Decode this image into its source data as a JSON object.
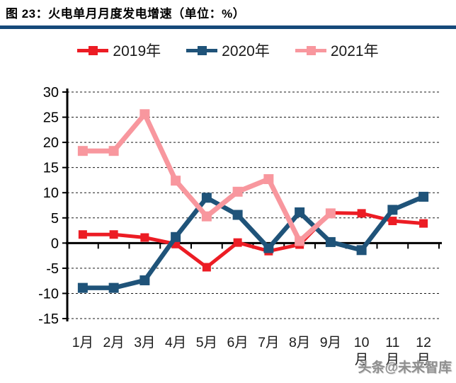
{
  "header": {
    "title": "图 23：火电单月月度发电增速（单位：%）",
    "rule_color": "#15497A"
  },
  "legend": [
    {
      "label": "2019年",
      "color": "#EC1C24"
    },
    {
      "label": "2020年",
      "color": "#1F5379"
    },
    {
      "label": "2021年",
      "color": "#F8979E"
    }
  ],
  "watermark": "头条@未来智库",
  "chart_data": {
    "type": "line",
    "title": "火电单月月度发电增速（单位：%）",
    "categories": [
      "1月",
      "2月",
      "3月",
      "4月",
      "5月",
      "6月",
      "7月",
      "8月",
      "9月",
      "10月",
      "11月",
      "12月"
    ],
    "series": [
      {
        "name": "2019年",
        "color": "#EC1C24",
        "values": [
          1.7,
          1.7,
          1.1,
          -0.2,
          -4.8,
          0.1,
          -1.6,
          -0.3,
          6.0,
          5.9,
          4.4,
          3.9
        ]
      },
      {
        "name": "2020年",
        "color": "#1F5379",
        "values": [
          -8.9,
          -8.9,
          -7.4,
          1.2,
          9.0,
          5.6,
          -1.0,
          6.1,
          0.2,
          -1.4,
          6.6,
          9.2
        ]
      },
      {
        "name": "2021年",
        "color": "#F8979E",
        "values": [
          18.3,
          18.3,
          25.6,
          12.4,
          5.3,
          10.2,
          12.7,
          0.4,
          5.9,
          null,
          null,
          null
        ]
      }
    ],
    "ylim": [
      -15,
      30
    ],
    "ytick_step": 5,
    "yticks": [
      30,
      25,
      20,
      15,
      10,
      5,
      0,
      -5,
      -10,
      -15
    ],
    "grid": "horizontal-dashed",
    "legend_position": "top",
    "xlabel": "",
    "ylabel": ""
  }
}
